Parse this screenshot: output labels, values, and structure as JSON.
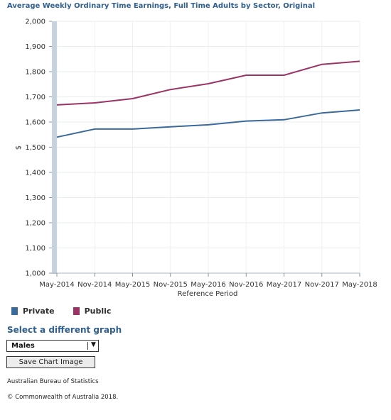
{
  "chart_title": "Average Weekly Ordinary Time Earnings, Full Time Adults by Sector, Original",
  "chart_data": {
    "type": "line",
    "title": "Average Weekly Ordinary Time Earnings, Full Time Adults by Sector, Original",
    "xlabel": "Reference Period",
    "ylabel": "$",
    "categories": [
      "May-2014",
      "Nov-2014",
      "May-2015",
      "Nov-2015",
      "May-2016",
      "Nov-2016",
      "May-2017",
      "Nov-2017",
      "May-2018"
    ],
    "ylim": [
      1000,
      2000
    ],
    "yticks": [
      "1,000",
      "1,100",
      "1,200",
      "1,300",
      "1,400",
      "1,500",
      "1,600",
      "1,700",
      "1,800",
      "1,900",
      "2,000"
    ],
    "grid": true,
    "legend_position": "bottom-left",
    "series": [
      {
        "name": "Private",
        "color": "#3a6a9b",
        "values": [
          1540,
          1572,
          1572,
          1581,
          1589,
          1604,
          1609,
          1636,
          1648
        ]
      },
      {
        "name": "Public",
        "color": "#9b3464",
        "values": [
          1668,
          1676,
          1693,
          1729,
          1752,
          1786,
          1786,
          1829,
          1841
        ]
      }
    ]
  },
  "controls": {
    "select_heading": "Select a different graph",
    "selected_option": "Males",
    "dropdown_arrow": "▼",
    "save_label": "Save Chart Image"
  },
  "footer": {
    "source": "Australian Bureau of Statistics",
    "copyright": "© Commonwealth of Australia 2018."
  }
}
